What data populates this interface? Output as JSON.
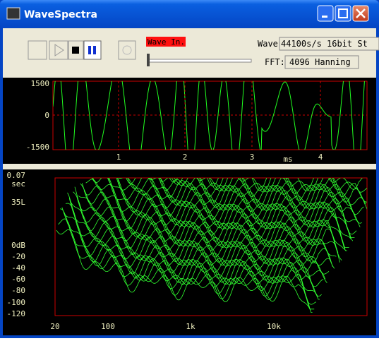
{
  "window": {
    "title": "WaveSpectra"
  },
  "toolbar": {
    "wave_in": "Wave In.",
    "wave_label": "Wave:",
    "wave_value": "44100s/s 16bit St",
    "fft_label": "FFT:",
    "fft_value": "4096 Hanning"
  },
  "waveform": {
    "y_labels": [
      "1500",
      "0",
      "-1500"
    ],
    "x_labels": [
      "1",
      "2",
      "3",
      "4"
    ],
    "x_unit": "ms"
  },
  "spectrum": {
    "time_label": "0.07",
    "time_unit": "sec",
    "count_label": "35L",
    "y_labels": [
      "0dB",
      "-20",
      "-40",
      "-60",
      "-80",
      "-100",
      "-120"
    ],
    "x_labels": [
      "20",
      "100",
      "1k",
      "10k"
    ]
  }
}
